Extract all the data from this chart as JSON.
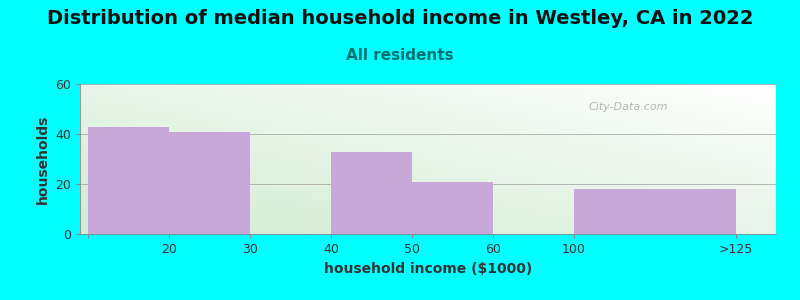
{
  "title": "Distribution of median household income in Westley, CA in 2022",
  "subtitle": "All residents",
  "xlabel": "household income ($1000)",
  "ylabel": "households",
  "bar_values": [
    43,
    41,
    33,
    21,
    18
  ],
  "bar_left": [
    0,
    1,
    3,
    4,
    6
  ],
  "bar_right": [
    1,
    2,
    4,
    5,
    8
  ],
  "bar_color": "#C8A8D8",
  "ylim": [
    0,
    60
  ],
  "yticks": [
    0,
    20,
    40,
    60
  ],
  "xtick_positions": [
    0,
    1,
    2,
    3,
    4,
    5,
    6,
    8
  ],
  "xtick_labels": [
    "",
    "20",
    "30",
    "40",
    "50",
    "60",
    "100",
    ">125"
  ],
  "xlim": [
    -0.1,
    8.5
  ],
  "background_color": "#00FFFF",
  "title_fontsize": 14,
  "subtitle_fontsize": 11,
  "subtitle_color": "#007070",
  "axis_label_fontsize": 10,
  "watermark": "City-Data.com"
}
